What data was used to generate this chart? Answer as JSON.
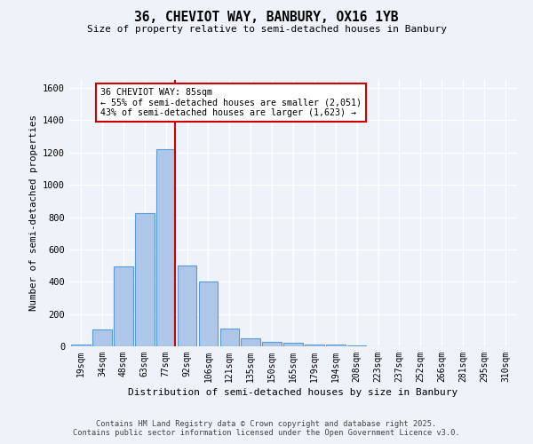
{
  "title_line1": "36, CHEVIOT WAY, BANBURY, OX16 1YB",
  "title_line2": "Size of property relative to semi-detached houses in Banbury",
  "xlabel": "Distribution of semi-detached houses by size in Banbury",
  "ylabel": "Number of semi-detached properties",
  "bar_labels": [
    "19sqm",
    "34sqm",
    "48sqm",
    "63sqm",
    "77sqm",
    "92sqm",
    "106sqm",
    "121sqm",
    "135sqm",
    "150sqm",
    "165sqm",
    "179sqm",
    "194sqm",
    "208sqm",
    "223sqm",
    "237sqm",
    "252sqm",
    "266sqm",
    "281sqm",
    "295sqm",
    "310sqm"
  ],
  "bar_values": [
    10,
    105,
    495,
    825,
    1220,
    500,
    400,
    110,
    50,
    30,
    20,
    12,
    10,
    5,
    2,
    1,
    1,
    0,
    0,
    0,
    0
  ],
  "bar_color": "#aec6e8",
  "bar_edge_color": "#5b9bd5",
  "vline_color": "#cc0000",
  "annotation_title": "36 CHEVIOT WAY: 85sqm",
  "annotation_left": "← 55% of semi-detached houses are smaller (2,051)",
  "annotation_right": "43% of semi-detached houses are larger (1,623) →",
  "annotation_box_color": "#ffffff",
  "annotation_box_edge": "#cc0000",
  "ylim": [
    0,
    1650
  ],
  "yticks": [
    0,
    200,
    400,
    600,
    800,
    1000,
    1200,
    1400,
    1600
  ],
  "footer_line1": "Contains HM Land Registry data © Crown copyright and database right 2025.",
  "footer_line2": "Contains public sector information licensed under the Open Government Licence v3.0.",
  "bg_color": "#eef2f9",
  "grid_color": "#ffffff"
}
